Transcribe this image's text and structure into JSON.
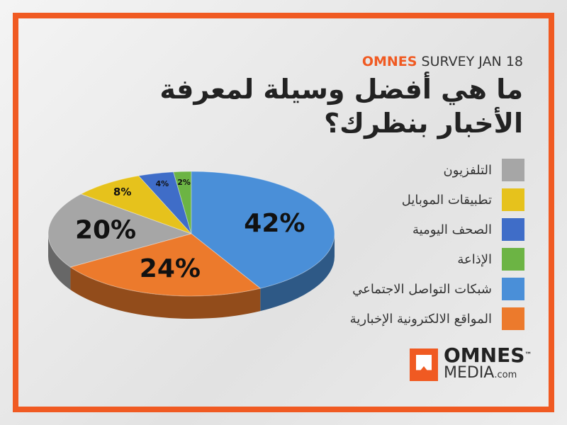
{
  "chart_data": {
    "type": "pie",
    "header_brand": "OMNES",
    "header_text": "SURVEY JAN 18",
    "title_lines": [
      "ما هي أفضل وسيلة لمعرفة",
      "الأخبار بنظرك؟"
    ],
    "categories": [
      "التلفزيون",
      "تطبيقات الموبايل",
      "الصحف اليومية",
      "الإذاعة",
      "شبكات التواصل الاجتماعي",
      "المواقع الالكترونية الإخبارية"
    ],
    "values": [
      20,
      8,
      4,
      2,
      42,
      24
    ],
    "value_labels": [
      "20%",
      "8%",
      "4%",
      "2%",
      "42%",
      "24%"
    ],
    "colors": [
      "#a6a6a6",
      "#e6c21c",
      "#3f6dc8",
      "#6cb444",
      "#4a8fd8",
      "#ec7a2c"
    ],
    "logo": {
      "name": "OMNES",
      "tm": "™",
      "sub": "MEDIA",
      "suffix": ".com"
    }
  }
}
